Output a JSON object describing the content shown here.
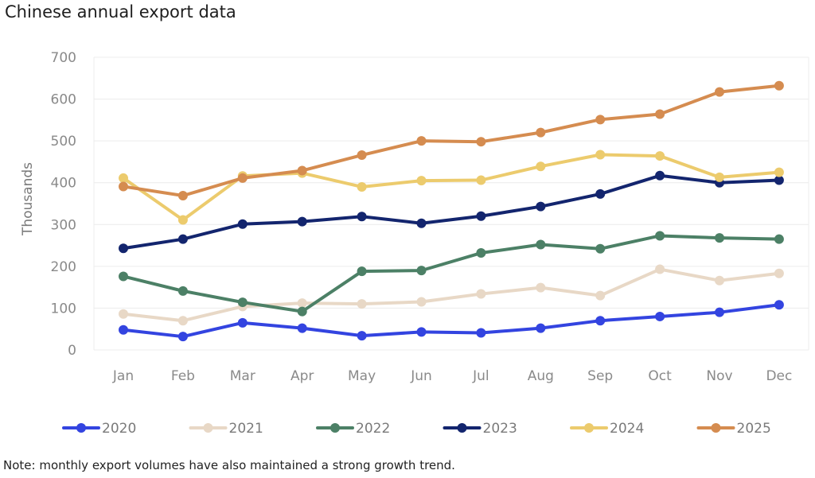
{
  "title": "Chinese annual export data",
  "note": "Note: monthly export volumes have also maintained a strong growth trend.",
  "chart_data": {
    "type": "line",
    "title": "Chinese annual export data",
    "xlabel": "",
    "ylabel": "Thousands",
    "ylim": [
      0,
      700
    ],
    "yticks": [
      "0",
      "100",
      "200",
      "300",
      "400",
      "500",
      "600",
      "700"
    ],
    "categories": [
      "Jan",
      "Feb",
      "Mar",
      "Apr",
      "May",
      "Jun",
      "Jul",
      "Aug",
      "Sep",
      "Oct",
      "Nov",
      "Dec"
    ],
    "grid": "horizontal",
    "legend_position": "bottom",
    "series": [
      {
        "name": "2020",
        "color": "#3344e0",
        "values": [
          48,
          32,
          65,
          52,
          34,
          43,
          41,
          52,
          70,
          80,
          90,
          108
        ]
      },
      {
        "name": "2021",
        "color": "#e8d8c6",
        "values": [
          86,
          70,
          104,
          112,
          110,
          115,
          134,
          149,
          130,
          193,
          166,
          183
        ]
      },
      {
        "name": "2022",
        "color": "#4c8066",
        "values": [
          176,
          141,
          114,
          92,
          188,
          190,
          232,
          252,
          242,
          273,
          268,
          265
        ]
      },
      {
        "name": "2023",
        "color": "#13256e",
        "values": [
          243,
          265,
          301,
          307,
          319,
          303,
          320,
          343,
          373,
          417,
          400,
          406
        ]
      },
      {
        "name": "2024",
        "color": "#eccb6d",
        "values": [
          411,
          311,
          416,
          423,
          390,
          405,
          406,
          439,
          467,
          464,
          413,
          425
        ]
      },
      {
        "name": "2025",
        "color": "#d58c50",
        "values": [
          391,
          369,
          411,
          429,
          466,
          500,
          498,
          520,
          551,
          564,
          617,
          632
        ]
      }
    ]
  }
}
